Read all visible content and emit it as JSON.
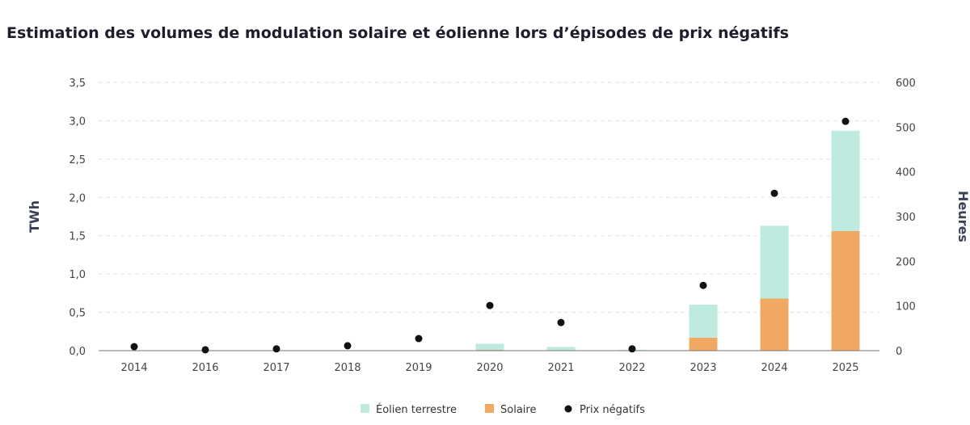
{
  "chart_data": {
    "type": "bar",
    "title": "Estimation des volumes de modulation solaire et éolienne lors d’épisodes de prix négatifs",
    "categories": [
      "2014",
      "2016",
      "2017",
      "2018",
      "2019",
      "2020",
      "2021",
      "2022",
      "2023",
      "2024",
      "2025"
    ],
    "ylabel": "TWh",
    "ylim": [
      0,
      3.5
    ],
    "yticks": [
      "0,0",
      "0,5",
      "1,0",
      "1,5",
      "2,0",
      "2,5",
      "3,0",
      "3,5"
    ],
    "y2label": "Heures",
    "y2lim": [
      0,
      600
    ],
    "y2ticks": [
      "0",
      "100",
      "200",
      "300",
      "400",
      "500",
      "600"
    ],
    "grid": true,
    "legend_position": "bottom",
    "series": [
      {
        "name": "Solaire",
        "type": "bar-stacked",
        "color": "#f0a862",
        "values": [
          0,
          0,
          0,
          0,
          0,
          0.01,
          0,
          0,
          0.17,
          0.68,
          1.56
        ]
      },
      {
        "name": "Éolien terrestre",
        "type": "bar-stacked",
        "color": "#bfeadf",
        "values": [
          0,
          0,
          0,
          0,
          0,
          0.08,
          0.05,
          0.01,
          0.43,
          0.95,
          1.31
        ]
      },
      {
        "name": "Prix négatifs",
        "type": "scatter",
        "axis": "right",
        "color": "#111111",
        "values": [
          9,
          2,
          4,
          11,
          27,
          101,
          63,
          4,
          146,
          352,
          513
        ]
      }
    ]
  }
}
